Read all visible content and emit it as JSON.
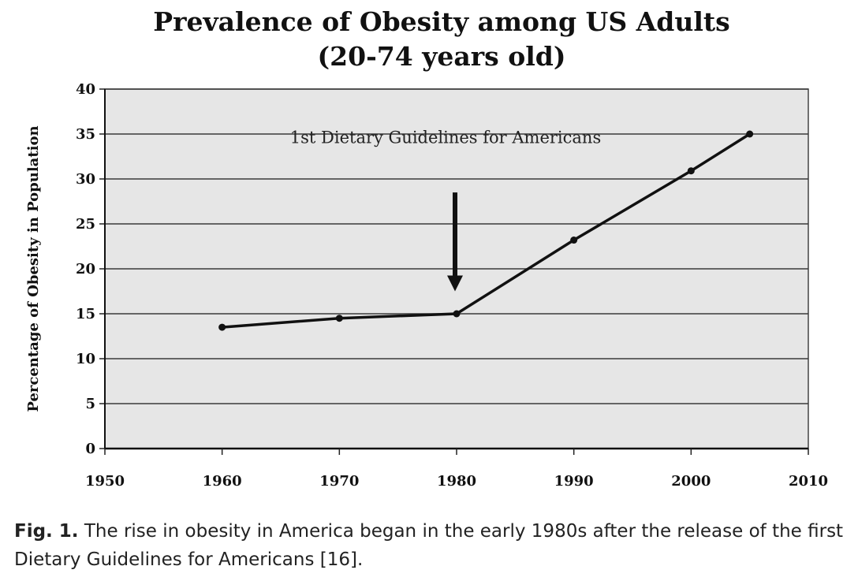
{
  "chart_data": {
    "type": "line",
    "title": "Prevalence of Obesity among US Adults",
    "subtitle": "(20-74 years old)",
    "xlabel": "",
    "ylabel": "Percentage of Obesity in Population",
    "xlim": [
      1950,
      2010
    ],
    "ylim": [
      0,
      40
    ],
    "xticks": [
      1950,
      1960,
      1970,
      1980,
      1990,
      2000,
      2010
    ],
    "yticks": [
      0,
      5,
      10,
      15,
      20,
      25,
      30,
      35,
      40
    ],
    "grid": true,
    "series": [
      {
        "x": [
          1960,
          1970,
          1980,
          1990,
          2000,
          2005
        ],
        "y": [
          13.5,
          14.5,
          15.0,
          23.2,
          30.9,
          35.0
        ]
      }
    ],
    "annotations": [
      {
        "text": "1st Dietary Guidelines for Americans",
        "x": 1980,
        "arrow": true
      }
    ]
  },
  "caption": {
    "label": "Fig. 1.",
    "text": "The rise in obesity in America began in the early 1980s after the release of the first Dietary Guidelines for Americans [16]."
  }
}
